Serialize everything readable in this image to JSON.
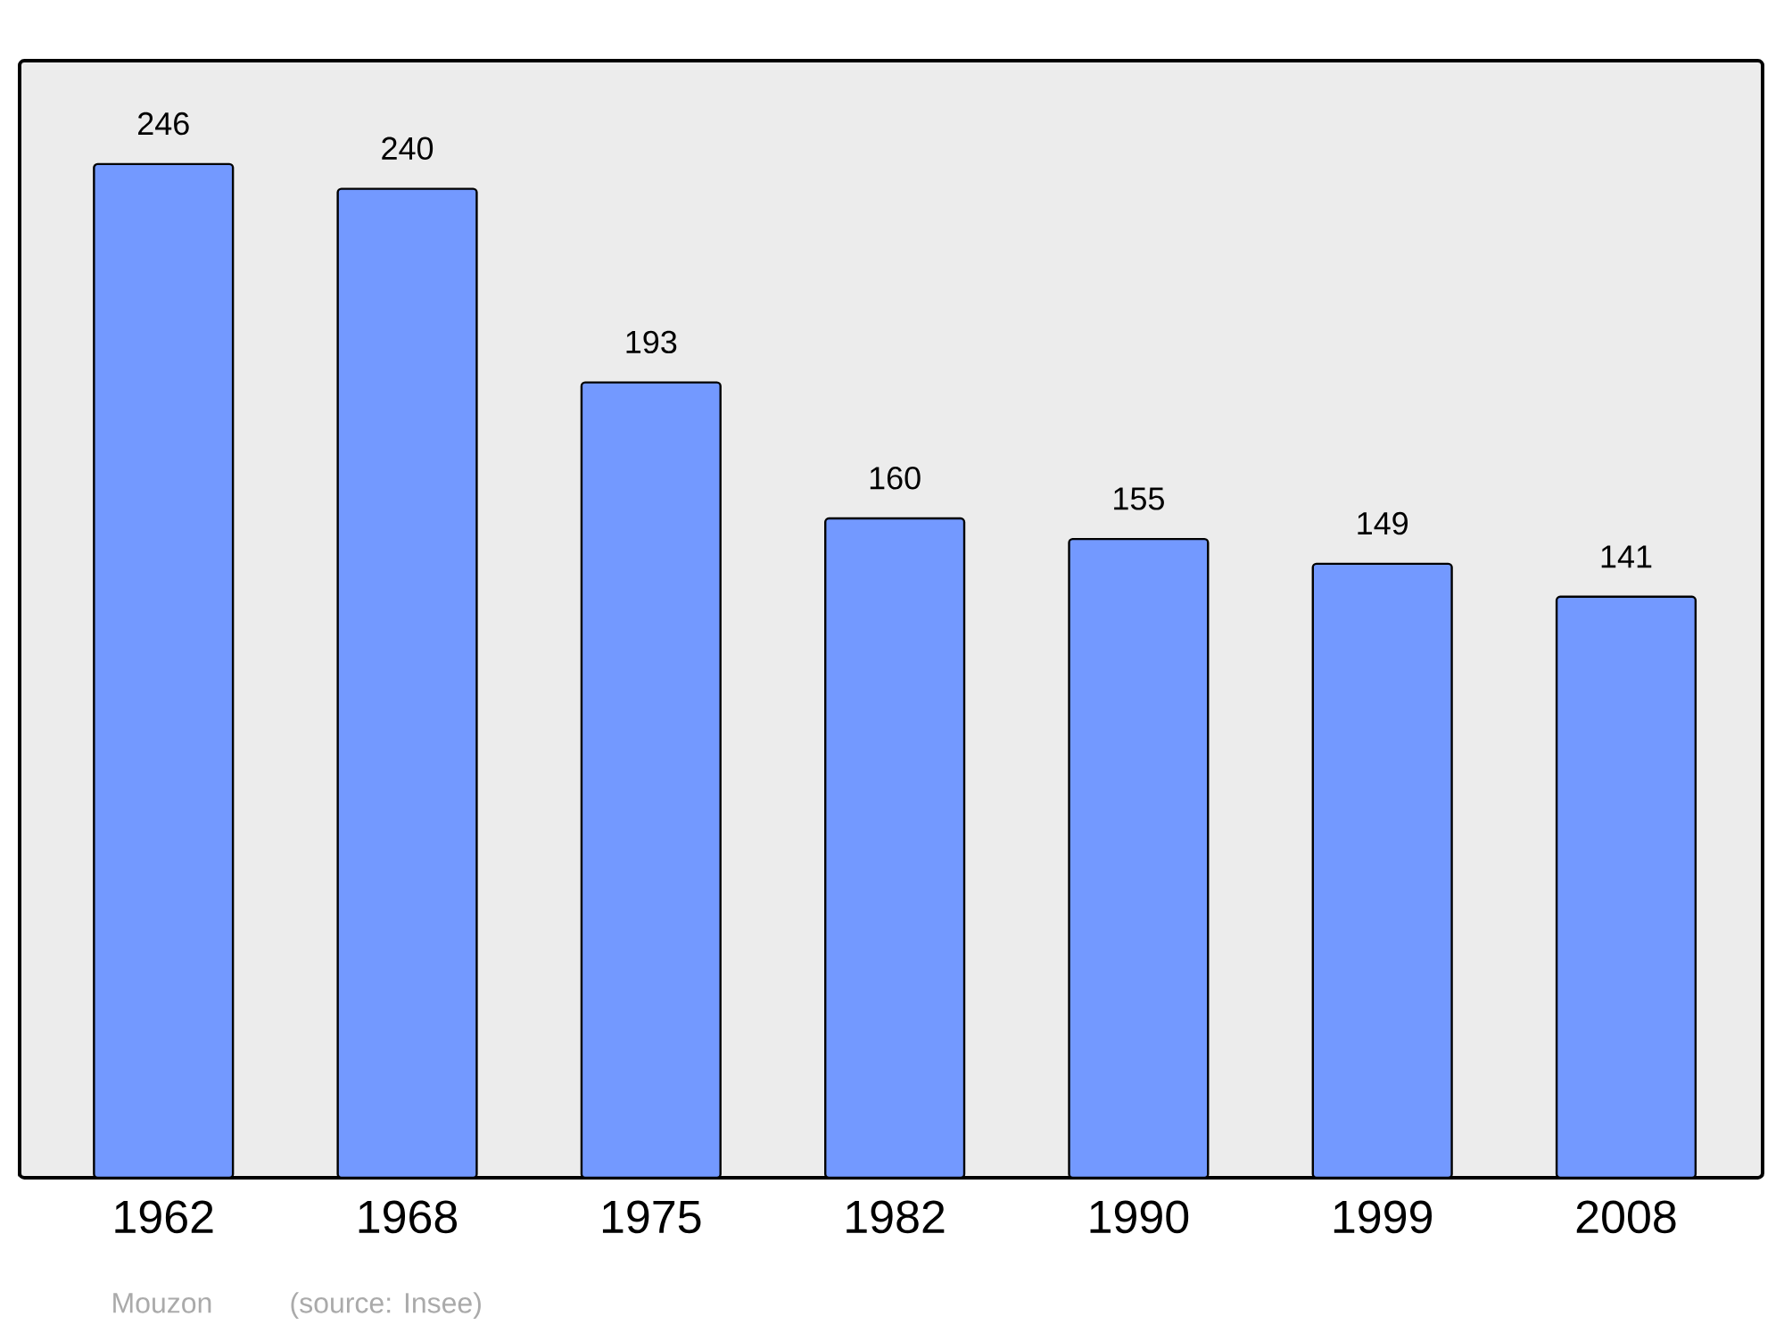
{
  "chart_data": {
    "type": "bar",
    "categories": [
      "1962",
      "1968",
      "1975",
      "1982",
      "1990",
      "1999",
      "2008"
    ],
    "values": [
      246,
      240,
      193,
      160,
      155,
      149,
      141
    ],
    "value_labels": [
      "246",
      "240",
      "193",
      "160",
      "155",
      "149",
      "141"
    ],
    "color": "#7399ff",
    "annotations": [
      "Mouzon",
      "(source: Insee)"
    ]
  }
}
